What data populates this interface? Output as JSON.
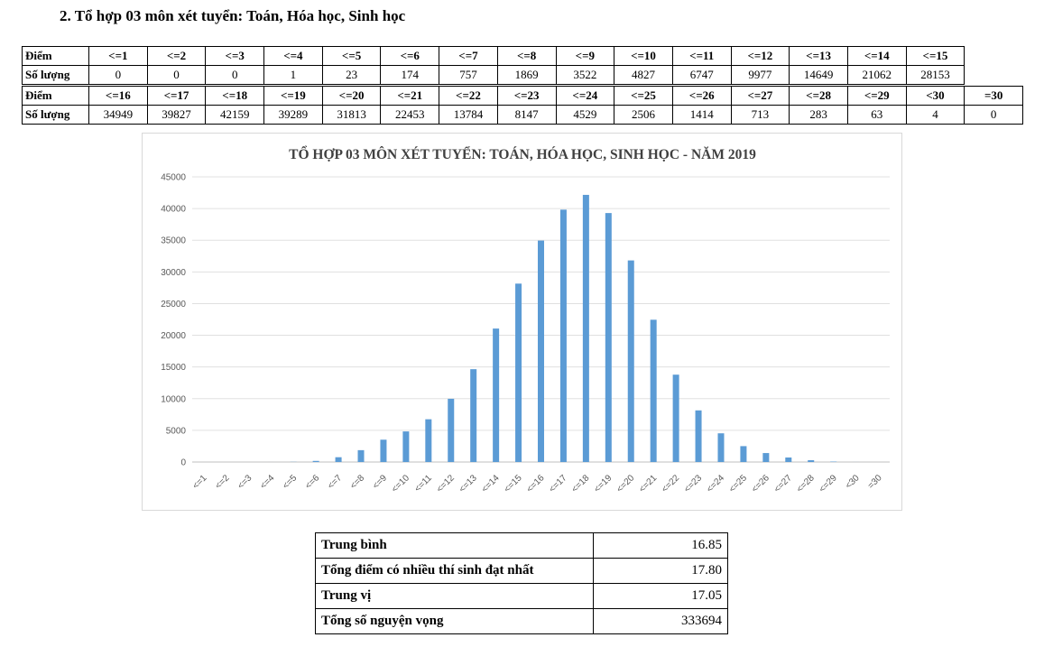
{
  "heading": "2. Tổ hợp 03 môn xét tuyển: Toán, Hóa học, Sinh học",
  "table": {
    "row_label_score": "Điểm",
    "row_label_count": "Số lượng",
    "part1": {
      "scores": [
        "<=1",
        "<=2",
        "<=3",
        "<=4",
        "<=5",
        "<=6",
        "<=7",
        "<=8",
        "<=9",
        "<=10",
        "<=11",
        "<=12",
        "<=13",
        "<=14",
        "<=15"
      ],
      "counts": [
        "0",
        "0",
        "0",
        "1",
        "23",
        "174",
        "757",
        "1869",
        "3522",
        "4827",
        "6747",
        "9977",
        "14649",
        "21062",
        "28153"
      ]
    },
    "part2": {
      "scores": [
        "<=16",
        "<=17",
        "<=18",
        "<=19",
        "<=20",
        "<=21",
        "<=22",
        "<=23",
        "<=24",
        "<=25",
        "<=26",
        "<=27",
        "<=28",
        "<=29",
        "<30",
        "=30"
      ],
      "counts": [
        "34949",
        "39827",
        "42159",
        "39289",
        "31813",
        "22453",
        "13784",
        "8147",
        "4529",
        "2506",
        "1414",
        "713",
        "283",
        "63",
        "4",
        "0"
      ]
    }
  },
  "chart_data": {
    "type": "bar",
    "title": "TỔ HỢP 03 MÔN XÉT TUYỂN: TOÁN, HÓA HỌC, SINH HỌC - NĂM 2019",
    "categories": [
      "<=1",
      "<=2",
      "<=3",
      "<=4",
      "<=5",
      "<=6",
      "<=7",
      "<=8",
      "<=9",
      "<=10",
      "<=11",
      "<=12",
      "<=13",
      "<=14",
      "<=15",
      "<=16",
      "<=17",
      "<=18",
      "<=19",
      "<=20",
      "<=21",
      "<=22",
      "<=23",
      "<=24",
      "<=25",
      "<=26",
      "<=27",
      "<=28",
      "<=29",
      "<30",
      "=30"
    ],
    "values": [
      0,
      0,
      0,
      1,
      23,
      174,
      757,
      1869,
      3522,
      4827,
      6747,
      9977,
      14649,
      21062,
      28153,
      34949,
      39827,
      42159,
      39289,
      31813,
      22453,
      13784,
      8147,
      4529,
      2506,
      1414,
      713,
      283,
      63,
      4,
      0
    ],
    "ylim": [
      0,
      45000
    ],
    "yticks": [
      0,
      5000,
      10000,
      15000,
      20000,
      25000,
      30000,
      35000,
      40000,
      45000
    ],
    "grid": true,
    "bar_color": "#5b9bd5",
    "xlabel": "",
    "ylabel": ""
  },
  "stats": [
    {
      "label": "Trung bình",
      "value": "16.85"
    },
    {
      "label": "Tổng điểm có nhiều thí sinh đạt nhất",
      "value": "17.80"
    },
    {
      "label": "Trung vị",
      "value": "17.05"
    },
    {
      "label": "Tổng số nguyện vọng",
      "value": "333694"
    }
  ]
}
